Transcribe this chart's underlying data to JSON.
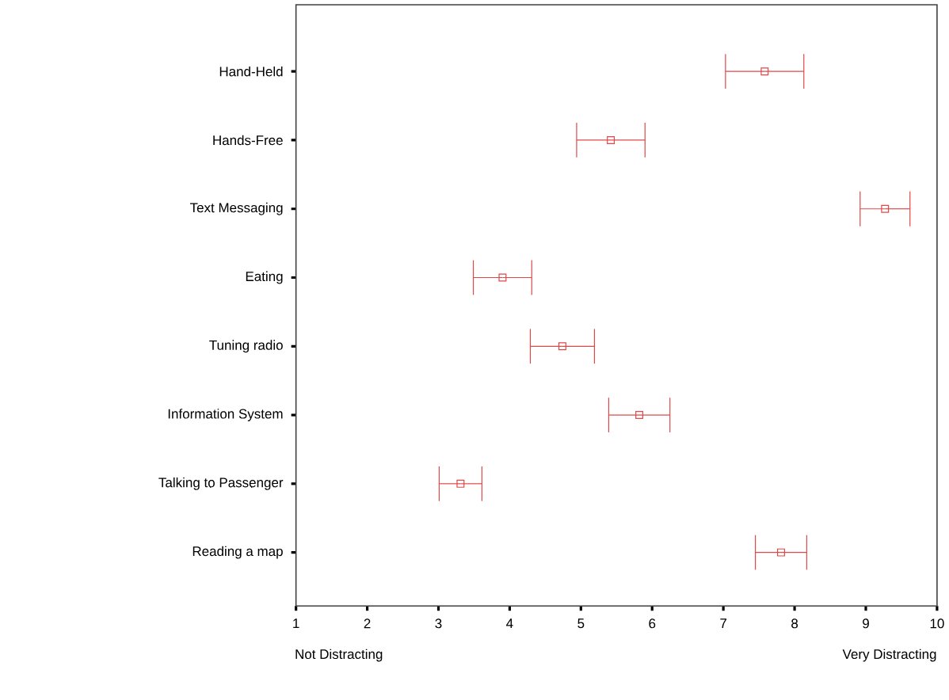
{
  "chart_data": {
    "type": "scatter",
    "orientation": "horizontal",
    "categories": [
      "Hand-Held",
      "Hands-Free",
      "Text Messaging",
      "Eating",
      "Tuning radio",
      "Information System",
      "Talking to Passenger",
      "Reading a map"
    ],
    "values": [
      7.58,
      5.42,
      9.27,
      3.9,
      4.74,
      5.82,
      3.31,
      7.81
    ],
    "errors": [
      0.55,
      0.48,
      0.35,
      0.41,
      0.45,
      0.43,
      0.3,
      0.36
    ],
    "color": "#e04848",
    "marker": "square",
    "xlim": [
      1,
      10
    ],
    "xticks": [
      1,
      2,
      3,
      4,
      5,
      6,
      7,
      8,
      9,
      10
    ],
    "annotations": [
      "Not Distracting",
      "Very Distracting"
    ]
  }
}
